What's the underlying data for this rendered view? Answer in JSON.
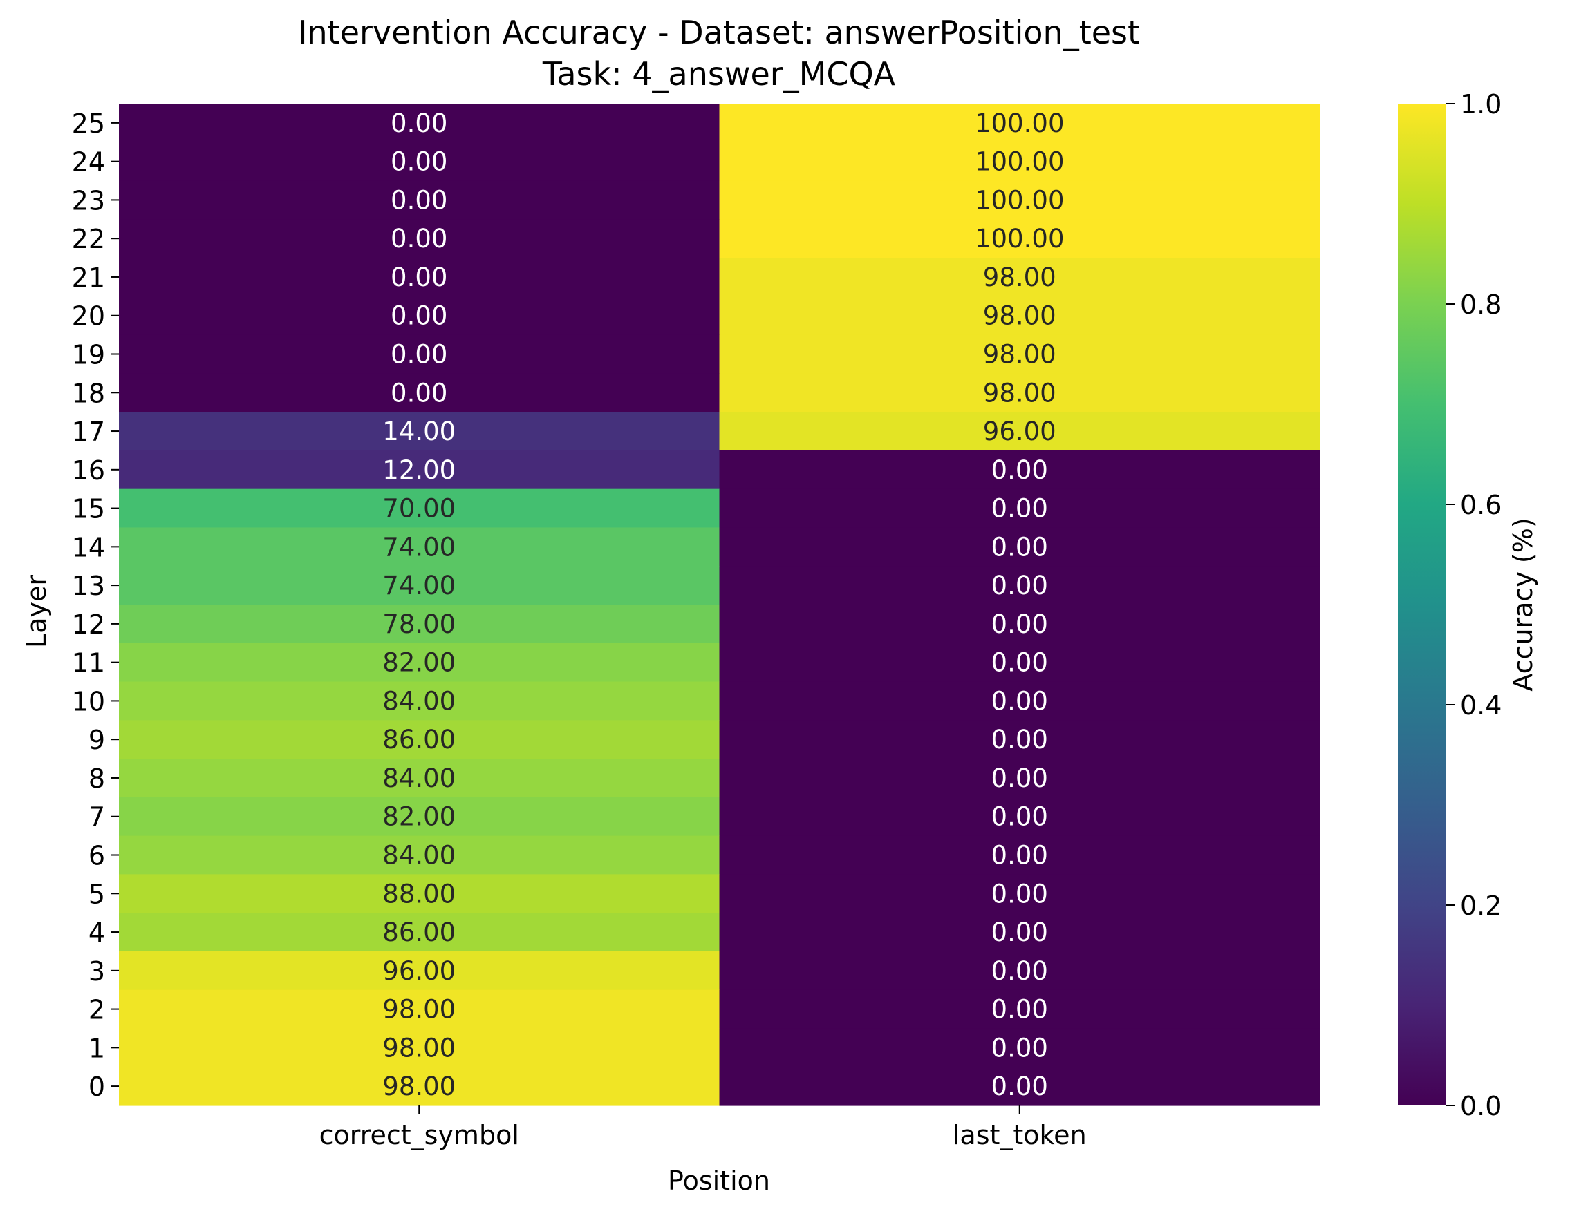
{
  "chart_data": {
    "type": "heatmap",
    "title": "Intervention Accuracy - Dataset: answerPosition_test",
    "subtitle": "Task: 4_answer_MCQA",
    "xlabel": "Position",
    "ylabel": "Layer",
    "x_categories": [
      "correct_symbol",
      "last_token"
    ],
    "y_categories": [
      "25",
      "24",
      "23",
      "22",
      "21",
      "20",
      "19",
      "18",
      "17",
      "16",
      "15",
      "14",
      "13",
      "12",
      "11",
      "10",
      "9",
      "8",
      "7",
      "6",
      "5",
      "4",
      "3",
      "2",
      "1",
      "0"
    ],
    "cell_labels": [
      [
        "0.00",
        "100.00"
      ],
      [
        "0.00",
        "100.00"
      ],
      [
        "0.00",
        "100.00"
      ],
      [
        "0.00",
        "100.00"
      ],
      [
        "0.00",
        "98.00"
      ],
      [
        "0.00",
        "98.00"
      ],
      [
        "0.00",
        "98.00"
      ],
      [
        "0.00",
        "98.00"
      ],
      [
        "14.00",
        "96.00"
      ],
      [
        "12.00",
        "0.00"
      ],
      [
        "70.00",
        "0.00"
      ],
      [
        "74.00",
        "0.00"
      ],
      [
        "74.00",
        "0.00"
      ],
      [
        "78.00",
        "0.00"
      ],
      [
        "82.00",
        "0.00"
      ],
      [
        "84.00",
        "0.00"
      ],
      [
        "86.00",
        "0.00"
      ],
      [
        "84.00",
        "0.00"
      ],
      [
        "82.00",
        "0.00"
      ],
      [
        "84.00",
        "0.00"
      ],
      [
        "88.00",
        "0.00"
      ],
      [
        "86.00",
        "0.00"
      ],
      [
        "96.00",
        "0.00"
      ],
      [
        "98.00",
        "0.00"
      ],
      [
        "98.00",
        "0.00"
      ],
      [
        "98.00",
        "0.00"
      ]
    ],
    "values": [
      [
        0,
        1
      ],
      [
        0,
        1
      ],
      [
        0,
        1
      ],
      [
        0,
        1
      ],
      [
        0,
        0.98
      ],
      [
        0,
        0.98
      ],
      [
        0,
        0.98
      ],
      [
        0,
        0.98
      ],
      [
        0.14,
        0.96
      ],
      [
        0.12,
        0
      ],
      [
        0.7,
        0
      ],
      [
        0.74,
        0
      ],
      [
        0.74,
        0
      ],
      [
        0.78,
        0
      ],
      [
        0.82,
        0
      ],
      [
        0.84,
        0
      ],
      [
        0.86,
        0
      ],
      [
        0.84,
        0
      ],
      [
        0.82,
        0
      ],
      [
        0.84,
        0
      ],
      [
        0.88,
        0
      ],
      [
        0.86,
        0
      ],
      [
        0.96,
        0
      ],
      [
        0.98,
        0
      ],
      [
        0.98,
        0
      ],
      [
        0.98,
        0
      ]
    ],
    "colorbar": {
      "label": "Accuracy (%)",
      "range": [
        0,
        1
      ],
      "ticks": [
        "0.0",
        "0.2",
        "0.4",
        "0.6",
        "0.8",
        "1.0"
      ],
      "colormap": "viridis"
    },
    "grid": false
  }
}
